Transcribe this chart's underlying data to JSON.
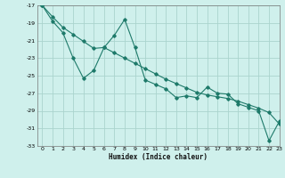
{
  "xlabel": "Humidex (Indice chaleur)",
  "background_color": "#cff0ec",
  "grid_color": "#aad4ce",
  "line_color": "#1e7a6a",
  "series1_x": [
    0,
    1,
    2,
    3,
    4,
    5,
    6,
    7,
    8,
    9,
    10,
    11,
    12,
    13,
    14,
    15,
    16,
    17,
    18,
    19,
    20,
    21,
    22,
    23
  ],
  "series1_y": [
    -17.0,
    -18.8,
    -20.1,
    -23.0,
    -25.3,
    -24.4,
    -21.8,
    -20.4,
    -18.6,
    -21.8,
    -25.5,
    -26.0,
    -26.5,
    -27.5,
    -27.3,
    -27.5,
    -26.3,
    -27.0,
    -27.1,
    -28.2,
    -28.6,
    -29.0,
    -32.4,
    -30.2
  ],
  "series2_x": [
    0,
    1,
    2,
    3,
    4,
    5,
    6,
    7,
    8,
    9,
    10,
    11,
    12,
    13,
    14,
    15,
    16,
    17,
    18,
    19,
    20,
    21,
    22,
    23
  ],
  "series2_y": [
    -17.0,
    -18.3,
    -19.5,
    -20.3,
    -21.1,
    -21.9,
    -21.8,
    -22.4,
    -23.0,
    -23.6,
    -24.2,
    -24.8,
    -25.4,
    -25.9,
    -26.4,
    -26.9,
    -27.2,
    -27.4,
    -27.6,
    -27.9,
    -28.3,
    -28.7,
    -29.2,
    -30.5
  ],
  "ylim": [
    -33,
    -17
  ],
  "xlim": [
    -0.5,
    23
  ],
  "yticks": [
    -17,
    -19,
    -21,
    -23,
    -25,
    -27,
    -29,
    -31,
    -33
  ],
  "xticks": [
    0,
    1,
    2,
    3,
    4,
    5,
    6,
    7,
    8,
    9,
    10,
    11,
    12,
    13,
    14,
    15,
    16,
    17,
    18,
    19,
    20,
    21,
    22,
    23
  ]
}
